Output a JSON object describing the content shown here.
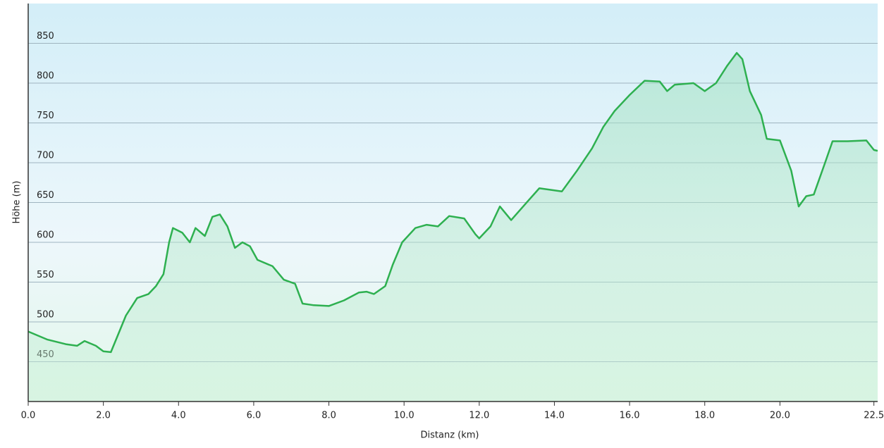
{
  "chart_data": {
    "type": "area-line",
    "x_label": "Distanz (km)",
    "y_label": "Höhe (m)",
    "x": [
      0,
      0.5,
      1.0,
      1.3,
      1.5,
      1.8,
      2.0,
      2.2,
      2.4,
      2.6,
      2.9,
      3.2,
      3.4,
      3.6,
      3.75,
      3.85,
      4.1,
      4.3,
      4.45,
      4.7,
      4.9,
      5.1,
      5.3,
      5.5,
      5.7,
      5.9,
      6.1,
      6.5,
      6.8,
      7.1,
      7.3,
      7.6,
      8.0,
      8.4,
      8.8,
      9.0,
      9.2,
      9.5,
      9.7,
      9.95,
      10.3,
      10.6,
      10.9,
      11.2,
      11.6,
      11.9,
      12.0,
      12.3,
      12.55,
      12.85,
      13.3,
      13.6,
      14.2,
      14.6,
      15.0,
      15.3,
      15.6,
      16.0,
      16.4,
      16.8,
      17.0,
      17.2,
      17.7,
      18.0,
      18.3,
      18.6,
      18.85,
      19.0,
      19.2,
      19.5,
      19.65,
      20.0,
      20.3,
      20.5,
      20.7,
      20.9,
      21.2,
      21.4,
      21.8,
      22.3,
      22.5,
      22.6
    ],
    "values": [
      488,
      478,
      472,
      470,
      476,
      470,
      463,
      462,
      485,
      508,
      530,
      535,
      545,
      560,
      600,
      618,
      612,
      600,
      618,
      608,
      632,
      635,
      620,
      593,
      600,
      595,
      578,
      570,
      553,
      548,
      523,
      521,
      520,
      527,
      537,
      538,
      535,
      545,
      572,
      600,
      618,
      622,
      620,
      633,
      630,
      610,
      605,
      620,
      645,
      628,
      652,
      668,
      664,
      690,
      718,
      745,
      765,
      785,
      803,
      802,
      790,
      798,
      800,
      790,
      800,
      822,
      838,
      830,
      790,
      760,
      730,
      728,
      690,
      645,
      658,
      660,
      700,
      727,
      727,
      728,
      716,
      715
    ],
    "color": "#2eb050",
    "xlim": [
      0,
      22.6
    ],
    "ylim": [
      400,
      900
    ],
    "xticks": [
      {
        "value": 0,
        "label": "0.0"
      },
      {
        "value": 2,
        "label": "2.0"
      },
      {
        "value": 4,
        "label": "4.0"
      },
      {
        "value": 6,
        "label": "6.0"
      },
      {
        "value": 8,
        "label": "8.0"
      },
      {
        "value": 10,
        "label": "10.0"
      },
      {
        "value": 12,
        "label": "12.0"
      },
      {
        "value": 14,
        "label": "14.0"
      },
      {
        "value": 16,
        "label": "16.0"
      },
      {
        "value": 18,
        "label": "18.0"
      },
      {
        "value": 20,
        "label": "20.0"
      },
      {
        "value": 22.5,
        "label": "22.5"
      }
    ],
    "yticks": [
      450,
      500,
      550,
      600,
      650,
      700,
      750,
      800,
      850
    ],
    "grid": true
  }
}
